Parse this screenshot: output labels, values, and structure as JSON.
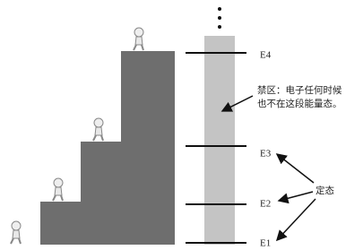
{
  "levels": [
    "E1",
    "E2",
    "E3",
    "E4"
  ],
  "forbidden_note": [
    "禁区：电子任何时候",
    "也不在这段能量态。"
  ],
  "stationary_label": "定态"
}
